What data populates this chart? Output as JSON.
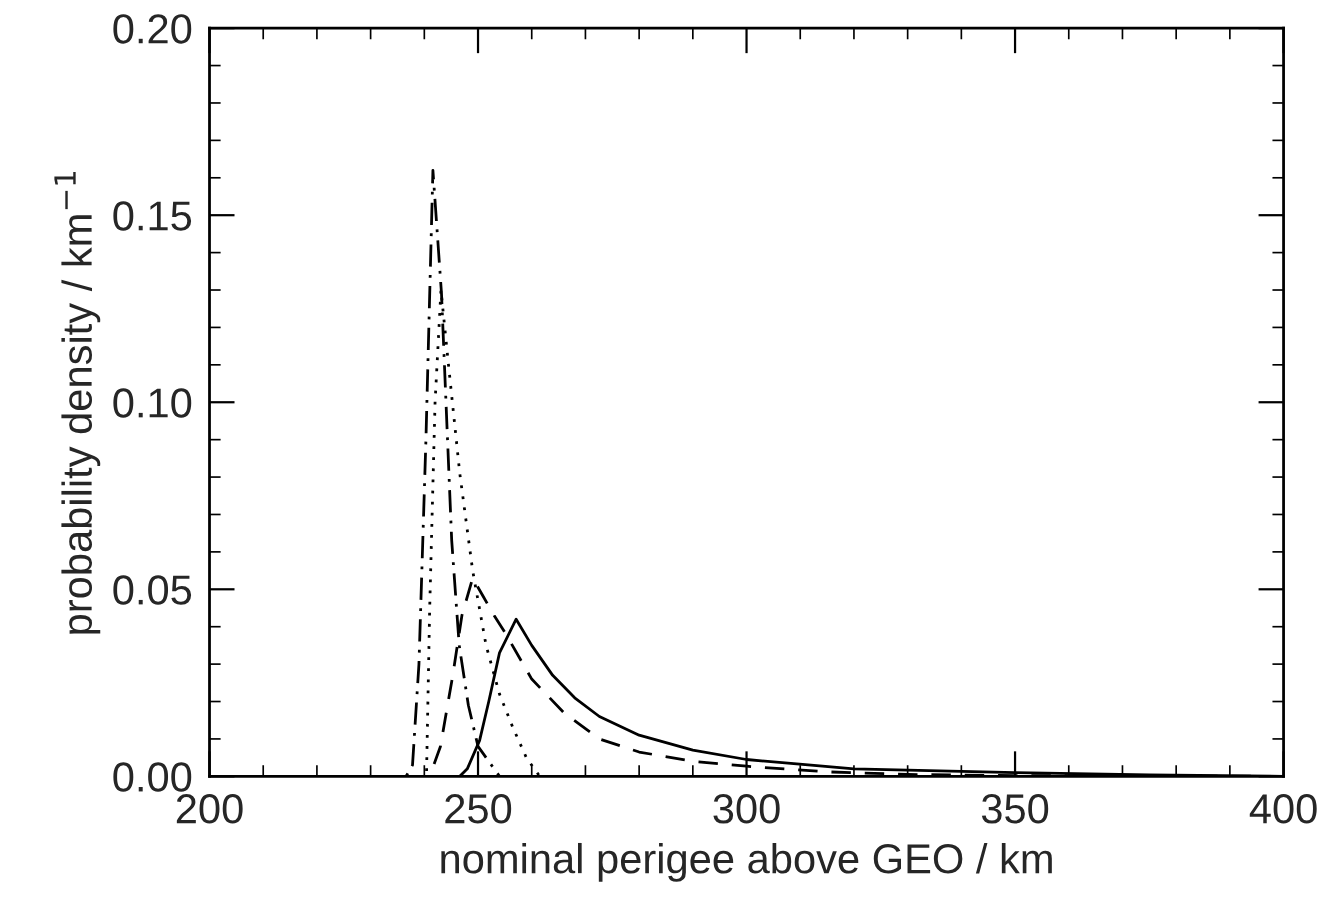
{
  "chart_data": {
    "type": "line",
    "xlabel": "nominal perigee above GEO / km",
    "ylabel": "probability density / km$^{−1}$",
    "xlim": [
      200,
      400
    ],
    "xticks": [
      200,
      250,
      300,
      350,
      400
    ],
    "ylim": [
      0,
      0.2
    ],
    "yticks": [
      {
        "value": 0,
        "label": "0.00"
      },
      {
        "value": 0.05,
        "label": "0.05"
      },
      {
        "value": 0.1,
        "label": "0.10"
      },
      {
        "value": 0.15,
        "label": "0.15"
      },
      {
        "value": 0.2,
        "label": "0.20"
      }
    ],
    "series": [
      {
        "color": "#000000",
        "line_style": "solid",
        "x": [
          200,
          246.6,
          248,
          250.3,
          252,
          254,
          257.1,
          260,
          263.9,
          268,
          272.6,
          280,
          290,
          300,
          320,
          350,
          375,
          400
        ],
        "values": [
          0,
          0,
          0.002,
          0.0096,
          0.02,
          0.033,
          0.042,
          0.035,
          0.027,
          0.021,
          0.016,
          0.011,
          0.007,
          0.0045,
          0.002,
          0.001,
          0.0004,
          0
        ]
      },
      {
        "color": "#000000",
        "line_style": "dashed",
        "x": [
          200,
          241,
          243,
          245.3,
          247,
          249,
          251,
          253,
          255.2,
          260,
          266,
          272.6,
          280,
          290,
          300,
          315,
          330,
          350,
          400
        ],
        "values": [
          0,
          0,
          0.008,
          0.027,
          0.043,
          0.053,
          0.048,
          0.043,
          0.038,
          0.026,
          0.017,
          0.01,
          0.0065,
          0.004,
          0.0027,
          0.0012,
          0.0005,
          0.0002,
          0
        ]
      },
      {
        "color": "#000000",
        "line_style": "dotted",
        "x": [
          200,
          240.4,
          241,
          242,
          243.1,
          244.5,
          246.6,
          249,
          251.5,
          254,
          256.5,
          259,
          261.5,
          400
        ],
        "values": [
          0,
          0,
          0.045,
          0.1,
          0.13,
          0.11,
          0.081,
          0.055,
          0.035,
          0.022,
          0.013,
          0.005,
          0,
          0
        ]
      },
      {
        "color": "#000000",
        "line_style": "dashdot",
        "x": [
          200,
          236.6,
          237.8,
          239,
          240.3,
          241.6,
          243.2,
          245.1,
          246.5,
          248.2,
          250,
          254,
          400
        ],
        "values": [
          0,
          0,
          0.003,
          0.03,
          0.09,
          0.162,
          0.129,
          0.063,
          0.035,
          0.019,
          0.008,
          0,
          0
        ]
      }
    ]
  }
}
